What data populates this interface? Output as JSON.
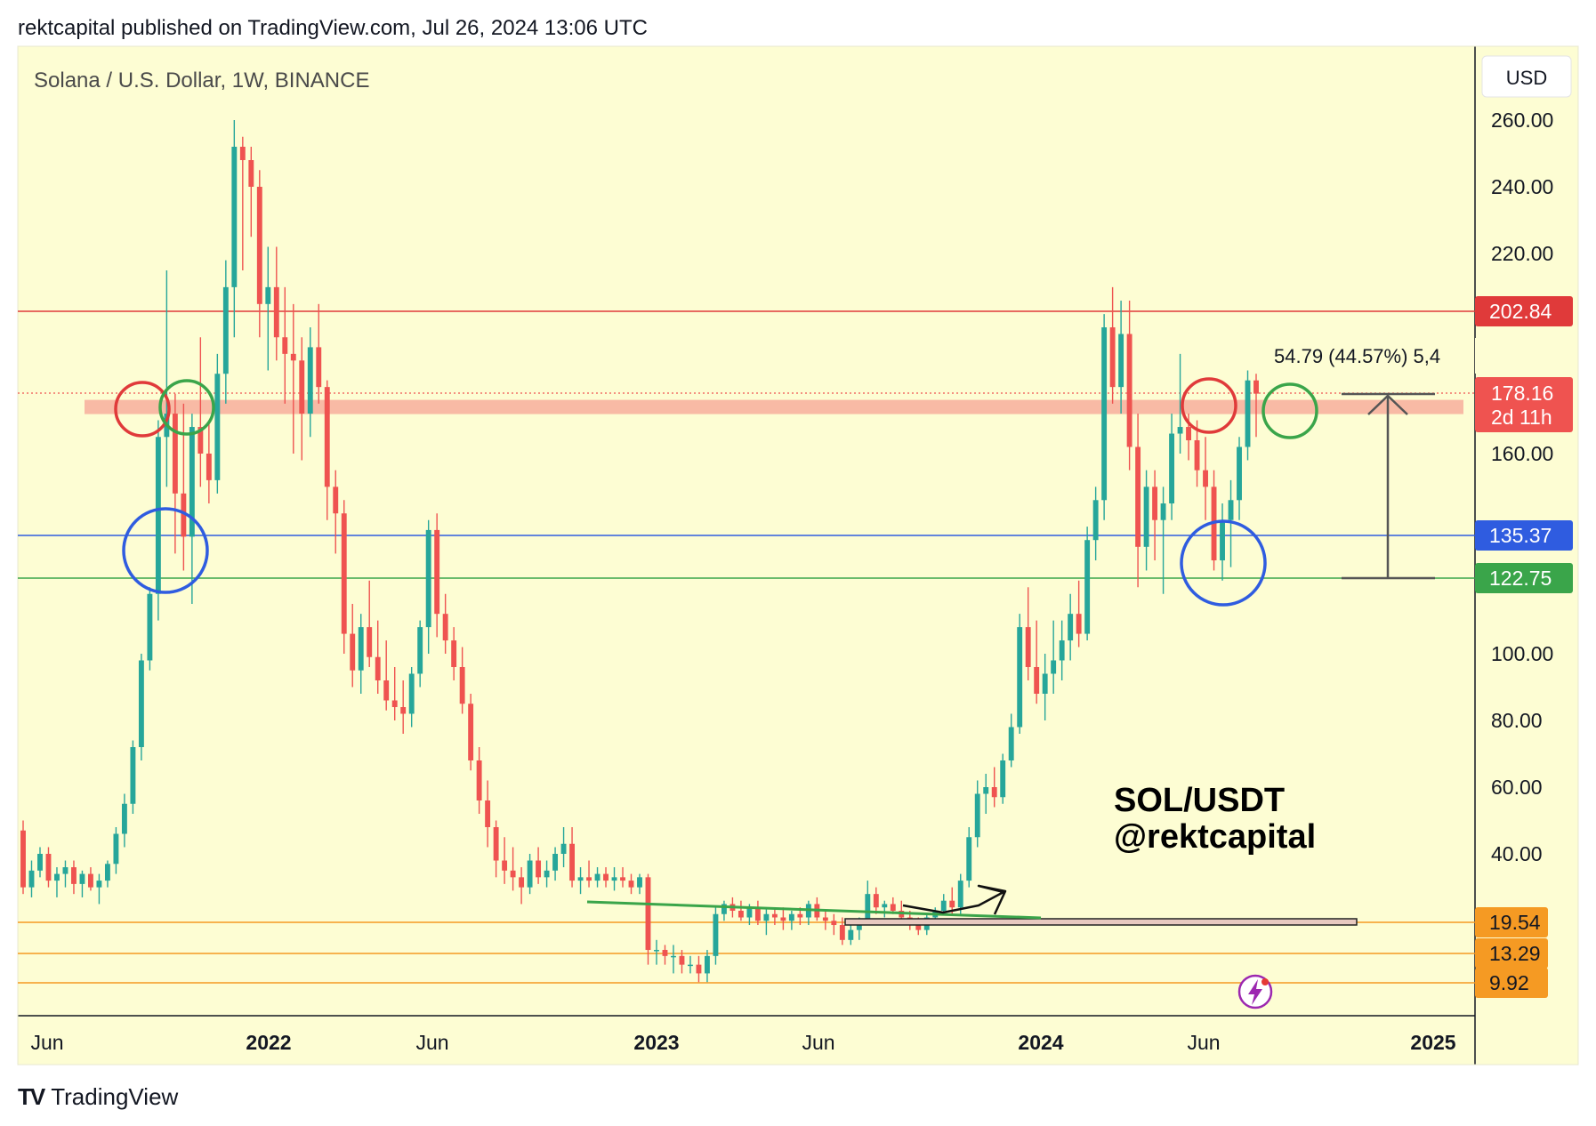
{
  "header": {
    "published": "rektcapital published on TradingView.com, Jul 26, 2024 13:06 UTC"
  },
  "footer": {
    "logo": "TV",
    "brand": "TradingView"
  },
  "chart_data": {
    "type": "candlestick",
    "title": "Solana / U.S. Dollar, 1W, BINANCE",
    "currency": "USD",
    "y_ticks": [
      "260.00",
      "240.00",
      "220.00",
      "160.00",
      "100.00",
      "80.00",
      "60.00",
      "40.00"
    ],
    "x_ticks": [
      {
        "label": "Jun",
        "bold": false
      },
      {
        "label": "2022",
        "bold": true
      },
      {
        "label": "Jun",
        "bold": false
      },
      {
        "label": "2023",
        "bold": true
      },
      {
        "label": "Jun",
        "bold": false
      },
      {
        "label": "2024",
        "bold": true
      },
      {
        "label": "Jun",
        "bold": false
      },
      {
        "label": "2025",
        "bold": true
      }
    ],
    "price_lines": [
      {
        "value": 202.84,
        "label": "202.84",
        "color": "#e03a3a",
        "text_color": "#ffffff"
      },
      {
        "value": 135.37,
        "label": "135.37",
        "color": "#2f5ce0",
        "text_color": "#ffffff"
      },
      {
        "value": 122.75,
        "label": "122.75",
        "color": "#3aa54a",
        "text_color": "#ffffff"
      },
      {
        "value": 19.54,
        "label": "19.54",
        "color": "#f59a23",
        "text_color": "#131722"
      },
      {
        "value": 13.29,
        "label": "13.29",
        "color": "#f59a23",
        "text_color": "#131722"
      },
      {
        "value": 9.92,
        "label": "9.92",
        "color": "#f59a23",
        "text_color": "#131722"
      }
    ],
    "current_price": {
      "value": 178.16,
      "label": "178.16",
      "countdown": "2d 11h",
      "color": "#ef5350"
    },
    "measure_label": "54.79 (44.57%) 5,4",
    "watermark": [
      "SOL/USDT",
      "@rektcapital"
    ],
    "colors": {
      "up": "#26a69a",
      "down": "#ef5350",
      "background": "#fdfdd3",
      "resistance_zone": "#f7b3a0"
    },
    "ohlc_weekly_approx": [
      [
        47,
        50,
        28,
        30
      ],
      [
        30,
        38,
        27,
        35
      ],
      [
        35,
        42,
        33,
        40
      ],
      [
        40,
        42,
        30,
        32
      ],
      [
        32,
        36,
        27,
        34
      ],
      [
        34,
        38,
        30,
        36
      ],
      [
        36,
        38,
        28,
        31
      ],
      [
        31,
        35,
        27,
        34
      ],
      [
        34,
        36,
        29,
        30
      ],
      [
        30,
        34,
        25,
        32
      ],
      [
        32,
        38,
        30,
        37
      ],
      [
        37,
        48,
        34,
        46
      ],
      [
        46,
        58,
        42,
        55
      ],
      [
        55,
        74,
        52,
        72
      ],
      [
        72,
        100,
        68,
        98
      ],
      [
        98,
        120,
        95,
        118
      ],
      [
        118,
        170,
        110,
        165
      ],
      [
        165,
        215,
        150,
        172
      ],
      [
        172,
        178,
        130,
        148
      ],
      [
        148,
        175,
        125,
        135
      ],
      [
        135,
        172,
        115,
        168
      ],
      [
        168,
        195,
        150,
        160
      ],
      [
        160,
        170,
        145,
        152
      ],
      [
        152,
        190,
        148,
        184
      ],
      [
        184,
        218,
        175,
        210
      ],
      [
        210,
        260,
        195,
        252
      ],
      [
        252,
        255,
        215,
        248
      ],
      [
        248,
        252,
        225,
        240
      ],
      [
        240,
        245,
        195,
        205
      ],
      [
        205,
        222,
        185,
        210
      ],
      [
        210,
        222,
        188,
        195
      ],
      [
        195,
        210,
        175,
        190
      ],
      [
        190,
        205,
        160,
        188
      ],
      [
        188,
        195,
        158,
        172
      ],
      [
        172,
        198,
        165,
        192
      ],
      [
        192,
        205,
        175,
        180
      ],
      [
        180,
        182,
        140,
        150
      ],
      [
        150,
        155,
        130,
        142
      ],
      [
        142,
        146,
        100,
        106
      ],
      [
        106,
        115,
        90,
        95
      ],
      [
        95,
        112,
        88,
        108
      ],
      [
        108,
        122,
        96,
        99
      ],
      [
        99,
        110,
        88,
        92
      ],
      [
        92,
        104,
        83,
        86
      ],
      [
        86,
        96,
        80,
        84
      ],
      [
        84,
        92,
        76,
        82
      ],
      [
        82,
        96,
        78,
        94
      ],
      [
        94,
        110,
        90,
        108
      ],
      [
        108,
        140,
        100,
        137
      ],
      [
        137,
        142,
        105,
        112
      ],
      [
        112,
        118,
        100,
        104
      ],
      [
        104,
        108,
        92,
        96
      ],
      [
        96,
        102,
        82,
        85
      ],
      [
        85,
        88,
        65,
        68
      ],
      [
        68,
        72,
        52,
        56
      ],
      [
        56,
        62,
        42,
        48
      ],
      [
        48,
        50,
        33,
        38
      ],
      [
        38,
        45,
        31,
        35
      ],
      [
        35,
        42,
        29,
        33
      ],
      [
        33,
        36,
        25,
        30
      ],
      [
        30,
        40,
        28,
        38
      ],
      [
        38,
        42,
        31,
        33
      ],
      [
        33,
        38,
        30,
        35
      ],
      [
        35,
        42,
        32,
        40
      ],
      [
        40,
        48,
        36,
        43
      ],
      [
        43,
        48,
        30,
        32
      ],
      [
        32,
        36,
        28,
        33
      ],
      [
        33,
        38,
        30,
        32
      ],
      [
        32,
        36,
        30,
        34
      ],
      [
        34,
        36,
        30,
        32
      ],
      [
        32,
        36,
        29,
        33
      ],
      [
        33,
        36,
        30,
        32
      ],
      [
        32,
        34,
        28,
        30
      ],
      [
        30,
        34,
        28,
        33
      ],
      [
        33,
        34,
        12,
        14
      ],
      [
        14,
        16,
        12,
        14
      ],
      [
        14,
        15,
        12,
        13
      ],
      [
        13,
        15,
        11,
        13
      ],
      [
        13,
        14,
        11,
        12
      ],
      [
        12,
        13,
        11,
        12
      ],
      [
        12,
        13,
        10,
        11
      ],
      [
        11,
        14,
        10,
        13
      ],
      [
        13,
        24,
        12,
        22
      ],
      [
        22,
        26,
        20,
        25
      ],
      [
        25,
        27,
        21,
        23
      ],
      [
        23,
        26,
        20,
        21
      ],
      [
        21,
        25,
        19,
        24
      ],
      [
        24,
        26,
        19,
        20
      ],
      [
        20,
        24,
        17,
        22
      ],
      [
        22,
        24,
        19,
        21
      ],
      [
        21,
        24,
        18,
        20
      ],
      [
        20,
        23,
        18,
        22
      ],
      [
        22,
        24,
        19,
        21
      ],
      [
        21,
        26,
        19,
        25
      ],
      [
        25,
        27,
        20,
        21
      ],
      [
        21,
        23,
        18,
        20
      ],
      [
        20,
        22,
        17,
        19
      ],
      [
        19,
        21,
        15,
        16
      ],
      [
        16,
        19,
        15,
        18
      ],
      [
        18,
        21,
        16,
        20
      ],
      [
        20,
        32,
        19,
        28
      ],
      [
        28,
        30,
        22,
        24
      ],
      [
        24,
        26,
        21,
        25
      ],
      [
        25,
        27,
        22,
        23
      ],
      [
        23,
        26,
        20,
        21
      ],
      [
        21,
        23,
        18,
        19
      ],
      [
        19,
        21,
        17,
        18
      ],
      [
        18,
        22,
        17,
        21
      ],
      [
        21,
        24,
        19,
        23
      ],
      [
        23,
        28,
        22,
        26
      ],
      [
        26,
        30,
        22,
        24
      ],
      [
        24,
        34,
        22,
        32
      ],
      [
        32,
        48,
        30,
        45
      ],
      [
        45,
        62,
        42,
        58
      ],
      [
        58,
        64,
        52,
        60
      ],
      [
        60,
        66,
        54,
        57
      ],
      [
        57,
        70,
        55,
        68
      ],
      [
        68,
        82,
        66,
        78
      ],
      [
        78,
        112,
        76,
        108
      ],
      [
        108,
        120,
        92,
        96
      ],
      [
        96,
        110,
        85,
        88
      ],
      [
        88,
        100,
        80,
        94
      ],
      [
        94,
        110,
        88,
        98
      ],
      [
        98,
        110,
        92,
        104
      ],
      [
        104,
        118,
        98,
        112
      ],
      [
        112,
        122,
        102,
        106
      ],
      [
        106,
        138,
        104,
        134
      ],
      [
        134,
        150,
        128,
        146
      ],
      [
        146,
        202,
        140,
        198
      ],
      [
        198,
        210,
        175,
        180
      ],
      [
        180,
        206,
        172,
        196
      ],
      [
        196,
        206,
        155,
        162
      ],
      [
        162,
        172,
        120,
        132
      ],
      [
        132,
        155,
        125,
        150
      ],
      [
        150,
        155,
        128,
        140
      ],
      [
        140,
        150,
        118,
        145
      ],
      [
        145,
        172,
        140,
        166
      ],
      [
        166,
        190,
        160,
        168
      ],
      [
        168,
        172,
        158,
        164
      ],
      [
        164,
        170,
        150,
        155
      ],
      [
        155,
        165,
        140,
        150
      ],
      [
        150,
        155,
        125,
        128
      ],
      [
        128,
        145,
        122,
        140
      ],
      [
        140,
        152,
        126,
        146
      ],
      [
        146,
        165,
        140,
        162
      ],
      [
        162,
        185,
        158,
        182
      ],
      [
        182,
        184,
        165,
        178
      ]
    ]
  }
}
